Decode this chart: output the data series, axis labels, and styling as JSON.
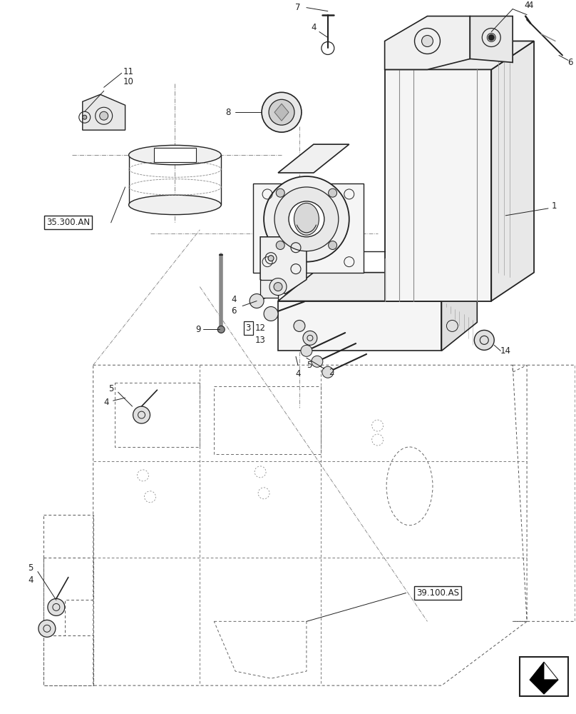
{
  "bg_color": "#ffffff",
  "line_color": "#222222",
  "dash_color": "#444444",
  "figsize": [
    8.08,
    10.0
  ],
  "dpi": 100,
  "font_size": 8.5,
  "label_font_size": 8.0
}
